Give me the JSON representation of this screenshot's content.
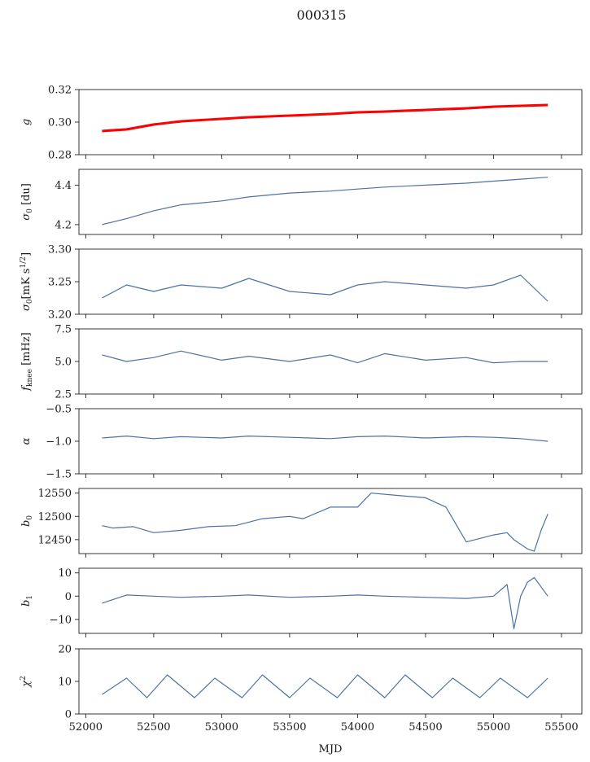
{
  "figure": {
    "title": "000315",
    "xlabel": "MJD"
  },
  "chart_data": [
    {
      "type": "line",
      "ylabel": "g",
      "xlim": [
        51950,
        55650
      ],
      "ylim": [
        0.28,
        0.32
      ],
      "yticks": [
        0.28,
        0.3,
        0.32
      ],
      "ytick_labels": [
        "0.28",
        "0.30",
        "0.32"
      ],
      "x": [
        52120,
        52300,
        52500,
        52700,
        53000,
        53200,
        53500,
        53800,
        54000,
        54200,
        54500,
        54800,
        55000,
        55200,
        55400
      ],
      "colors": {
        "series": "#4c72a4",
        "fit": "#ff0000"
      },
      "series": [
        {
          "values": [
            0.295,
            0.296,
            0.299,
            0.3,
            0.302,
            0.303,
            0.304,
            0.305,
            0.306,
            0.306,
            0.307,
            0.308,
            0.309,
            0.31,
            0.311
          ]
        },
        {
          "values": [
            0.2945,
            0.2955,
            0.2985,
            0.3005,
            0.302,
            0.303,
            0.304,
            0.305,
            0.306,
            0.3065,
            0.3075,
            0.3085,
            0.3095,
            0.31,
            0.3105
          ]
        }
      ]
    },
    {
      "type": "line",
      "ylabel": "σ0 [du]",
      "xlim": [
        51950,
        55650
      ],
      "ylim": [
        4.15,
        4.48
      ],
      "yticks": [
        4.2,
        4.4
      ],
      "ytick_labels": [
        "4.2",
        "4.4"
      ],
      "x": [
        52120,
        52300,
        52500,
        52700,
        53000,
        53200,
        53500,
        53800,
        54000,
        54200,
        54500,
        54800,
        55000,
        55200,
        55400
      ],
      "series": [
        {
          "values": [
            4.2,
            4.23,
            4.27,
            4.3,
            4.32,
            4.34,
            4.36,
            4.37,
            4.38,
            4.39,
            4.4,
            4.41,
            4.42,
            4.43,
            4.44
          ]
        }
      ]
    },
    {
      "type": "line",
      "ylabel": "σ0[mK s^1/2]",
      "xlim": [
        51950,
        55650
      ],
      "ylim": [
        3.2,
        3.3
      ],
      "yticks": [
        3.2,
        3.25,
        3.3
      ],
      "ytick_labels": [
        "3.20",
        "3.25",
        "3.30"
      ],
      "x": [
        52120,
        52300,
        52500,
        52700,
        53000,
        53200,
        53500,
        53800,
        54000,
        54200,
        54500,
        54800,
        55000,
        55200,
        55400
      ],
      "series": [
        {
          "values": [
            3.225,
            3.245,
            3.235,
            3.245,
            3.24,
            3.255,
            3.235,
            3.23,
            3.245,
            3.25,
            3.245,
            3.24,
            3.245,
            3.26,
            3.22
          ]
        }
      ]
    },
    {
      "type": "line",
      "ylabel": "fknee [mHz]",
      "xlim": [
        51950,
        55650
      ],
      "ylim": [
        2.5,
        7.5
      ],
      "yticks": [
        2.5,
        5.0,
        7.5
      ],
      "ytick_labels": [
        "2.5",
        "5.0",
        "7.5"
      ],
      "x": [
        52120,
        52300,
        52500,
        52700,
        53000,
        53200,
        53500,
        53800,
        54000,
        54200,
        54500,
        54800,
        55000,
        55200,
        55400
      ],
      "series": [
        {
          "values": [
            5.5,
            5.0,
            5.3,
            5.8,
            5.1,
            5.4,
            5.0,
            5.5,
            4.9,
            5.6,
            5.1,
            5.3,
            4.9,
            5.0,
            5.0
          ]
        }
      ]
    },
    {
      "type": "line",
      "ylabel": "α",
      "xlim": [
        51950,
        55650
      ],
      "ylim": [
        -1.5,
        -0.5
      ],
      "yticks": [
        -1.5,
        -1.0,
        -0.5
      ],
      "ytick_labels": [
        "−1.5",
        "−1.0",
        "−0.5"
      ],
      "x": [
        52120,
        52300,
        52500,
        52700,
        53000,
        53200,
        53500,
        53800,
        54000,
        54200,
        54500,
        54800,
        55000,
        55200,
        55400
      ],
      "series": [
        {
          "values": [
            -0.95,
            -0.92,
            -0.96,
            -0.93,
            -0.95,
            -0.92,
            -0.94,
            -0.96,
            -0.93,
            -0.92,
            -0.95,
            -0.93,
            -0.94,
            -0.96,
            -1.0
          ]
        }
      ]
    },
    {
      "type": "line",
      "ylabel": "b0",
      "xlim": [
        51950,
        55650
      ],
      "ylim": [
        12420,
        12560
      ],
      "yticks": [
        12450,
        12500,
        12550
      ],
      "ytick_labels": [
        "12450",
        "12500",
        "12550"
      ],
      "x": [
        52120,
        52200,
        52350,
        52500,
        52700,
        52900,
        53100,
        53300,
        53500,
        53600,
        53800,
        54000,
        54100,
        54300,
        54500,
        54650,
        54800,
        55000,
        55100,
        55150,
        55250,
        55300,
        55350,
        55400
      ],
      "series": [
        {
          "values": [
            12480,
            12475,
            12478,
            12465,
            12470,
            12478,
            12480,
            12495,
            12500,
            12495,
            12520,
            12520,
            12550,
            12545,
            12540,
            12520,
            12445,
            12460,
            12465,
            12450,
            12430,
            12425,
            12470,
            12505
          ]
        }
      ]
    },
    {
      "type": "line",
      "ylabel": "b1",
      "xlim": [
        51950,
        55650
      ],
      "ylim": [
        -16,
        12
      ],
      "yticks": [
        -10,
        0,
        10
      ],
      "ytick_labels": [
        "−10",
        "0",
        "10"
      ],
      "x": [
        52120,
        52300,
        52500,
        52700,
        53000,
        53200,
        53500,
        53800,
        54000,
        54200,
        54500,
        54800,
        55000,
        55100,
        55150,
        55200,
        55250,
        55300,
        55400
      ],
      "series": [
        {
          "values": [
            -3,
            0.5,
            0,
            -0.5,
            0,
            0.5,
            -0.5,
            0,
            0.5,
            0,
            -0.5,
            -1,
            0,
            5,
            -14,
            0,
            6,
            8,
            0
          ]
        }
      ]
    },
    {
      "type": "line",
      "ylabel": "χ2",
      "xlim": [
        51950,
        55650
      ],
      "ylim": [
        0,
        20
      ],
      "yticks": [
        0,
        10,
        20
      ],
      "ytick_labels": [
        "0",
        "10",
        "20"
      ],
      "xticks": [
        52000,
        52500,
        53000,
        53500,
        54000,
        54500,
        55000,
        55500
      ],
      "xtick_labels": [
        "52000",
        "52500",
        "53000",
        "53500",
        "54000",
        "54500",
        "55000",
        "55500"
      ],
      "x": [
        52120,
        52300,
        52450,
        52600,
        52800,
        52950,
        53150,
        53300,
        53500,
        53650,
        53850,
        54000,
        54200,
        54350,
        54550,
        54700,
        54900,
        55050,
        55250,
        55400
      ],
      "series": [
        {
          "values": [
            6,
            11,
            5,
            12,
            5,
            11,
            5,
            12,
            5,
            11,
            5,
            12,
            5,
            12,
            5,
            11,
            5,
            11,
            5,
            11
          ]
        }
      ]
    }
  ]
}
